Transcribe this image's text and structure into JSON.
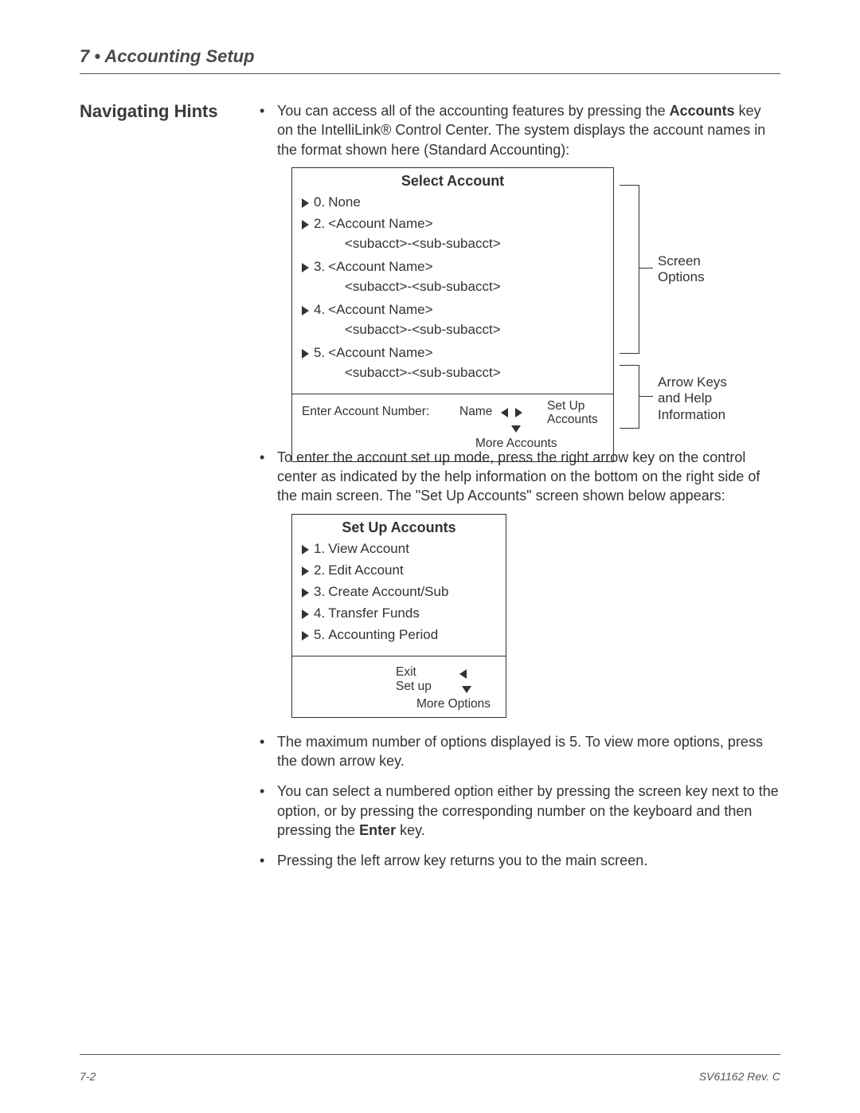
{
  "chapter_title": "7 • Accounting Setup",
  "section_heading": "Navigating Hints",
  "para1_a": "You can access all of the accounting features by pressing the ",
  "para1_bold": "Accounts",
  "para1_b": " key on the IntelliLink® Control Center. The system displays the account names in the format shown here (Standard Accounting):",
  "screen1": {
    "title": "Select Account",
    "items": [
      {
        "num": "0.",
        "text": "None",
        "sub": ""
      },
      {
        "num": "2.",
        "text": "<Account Name>",
        "sub": "<subacct>-<sub-subacct>"
      },
      {
        "num": "3.",
        "text": "<Account Name>",
        "sub": "<subacct>-<sub-subacct>"
      },
      {
        "num": "4.",
        "text": "<Account Name>",
        "sub": "<subacct>-<sub-subacct>"
      },
      {
        "num": "5.",
        "text": "<Account Name>",
        "sub": "<subacct>-<sub-subacct>"
      }
    ],
    "enter_label": "Enter Account Number:",
    "name_label": "Name",
    "setup_label_a": "Set Up",
    "setup_label_b": "Accounts",
    "more_label": "More Accounts"
  },
  "bracket_label1_a": "Screen",
  "bracket_label1_b": "Options",
  "bracket_label2_a": "Arrow Keys",
  "bracket_label2_b": "and Help",
  "bracket_label2_c": "Information",
  "para2": "To enter the account set up mode, press the right arrow key on the control center as indicated by the help information on the bottom on the right side of the main screen.  The \"Set Up Accounts\" screen shown below appears:",
  "screen2": {
    "title": "Set Up Accounts",
    "items": [
      {
        "num": "1.",
        "text": "View Account"
      },
      {
        "num": "2.",
        "text": "Edit Account"
      },
      {
        "num": "3.",
        "text": "Create Account/Sub"
      },
      {
        "num": "4.",
        "text": "Transfer Funds"
      },
      {
        "num": "5.",
        "text": "Accounting Period"
      }
    ],
    "exit_label": "Exit",
    "setup_label": "Set up",
    "more_label": "More Options"
  },
  "para3": "The maximum number of options displayed is 5. To view more options, press the down arrow key.",
  "para4_a": "You can select a numbered option either by pressing the screen key next to the option, or by pressing the corresponding number on the keyboard and then pressing the ",
  "para4_bold": "Enter",
  "para4_b": " key.",
  "para5": "Pressing the left arrow key returns you to the main screen.",
  "page_number": "7-2",
  "doc_id": "SV61162 Rev. C"
}
